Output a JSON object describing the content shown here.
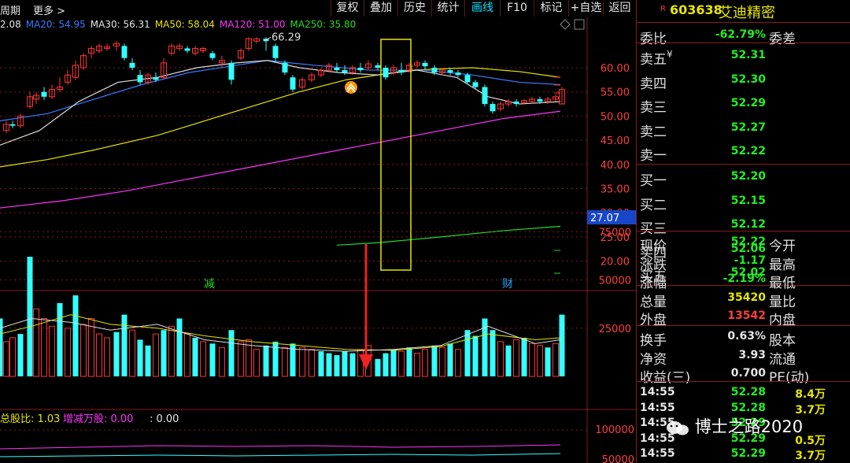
{
  "toolbar": {
    "period_label": "周期",
    "more_label": "更多 >",
    "buttons": [
      "复权",
      "叠加",
      "历史",
      "统计",
      "画线",
      "F10",
      "标记",
      "+自选",
      "返回"
    ],
    "active_button": "画线"
  },
  "ma_legend": [
    {
      "label": "2.08",
      "color": "#e6e6e6"
    },
    {
      "label": "MA20: 54.95",
      "color": "#3a7bff"
    },
    {
      "label": "MA30: 56.31",
      "color": "#e6e6e6"
    },
    {
      "label": "MA50: 58.04",
      "color": "#e6e600"
    },
    {
      "label": "MA120: 51.00",
      "color": "#ff33ff"
    },
    {
      "label": "MA250: 35.80",
      "color": "#22dd22"
    }
  ],
  "price_chart": {
    "high_marker": "66.29",
    "y_ticks": [
      "60.00",
      "55.00",
      "50.00",
      "45.00",
      "40.00",
      "35.00",
      "30.00",
      "25.00",
      "20.00"
    ],
    "current_tag": "27.07",
    "event_labels": [
      "减",
      "财"
    ]
  },
  "volume_chart": {
    "y_ticks": [
      "75000",
      "50000",
      "25000"
    ]
  },
  "bottom_indicator": {
    "labels": [
      {
        "text": "总股比: 1.03",
        "color": "#e6e600"
      },
      {
        "text": "增减万股: 0.00",
        "color": "#ff33ff"
      },
      {
        "text": ": 0.00",
        "color": "#e6e6e6"
      }
    ],
    "y_tick": "100000",
    "y_tick2": "50000"
  },
  "stock": {
    "badge": "R",
    "code": "603638",
    "name": "艾迪精密"
  },
  "weibi": {
    "label": "委比",
    "value": "-62.79%",
    "label2": "委差"
  },
  "order_book": {
    "sells": [
      {
        "label": "卖五",
        "mark": "¥",
        "price": "52.31"
      },
      {
        "label": "卖四",
        "price": "52.30"
      },
      {
        "label": "卖三",
        "price": "52.29"
      },
      {
        "label": "卖二",
        "price": "52.27"
      },
      {
        "label": "卖一",
        "price": "52.22"
      }
    ],
    "buys": [
      {
        "label": "买一",
        "price": "52.20"
      },
      {
        "label": "买二",
        "price": "52.15"
      },
      {
        "label": "买三",
        "price": "52.12"
      },
      {
        "label": "买四",
        "price": "52.06"
      },
      {
        "label": "买五",
        "price": "52.02"
      }
    ]
  },
  "quote": [
    {
      "label": "现价",
      "value": "52.22",
      "color": "#22ee22",
      "label2": "今开"
    },
    {
      "label": "涨跌",
      "value": "-1.17",
      "color": "#22ee22",
      "label2": "最高"
    },
    {
      "label": "涨幅",
      "value": "-2.19%",
      "color": "#22ee22",
      "label2": "最低"
    },
    {
      "label": "总量",
      "value": "35420",
      "color": "#e6e600",
      "label2": "量比"
    },
    {
      "label": "外盘",
      "value": "13542",
      "color": "#ff4040",
      "label2": "内盘"
    }
  ],
  "fundamentals": [
    {
      "label": "换手",
      "value": "0.63%",
      "label2": "股本"
    },
    {
      "label": "净资",
      "value": "3.93",
      "label2": "流通"
    },
    {
      "label": "收益(三)",
      "value": "0.700",
      "label2": "PE(动)"
    }
  ],
  "ticks": [
    {
      "time": "14:55",
      "price": "52.28",
      "vol": "8.4万",
      "volcolor": "#e6e600"
    },
    {
      "time": "14:55",
      "price": "52.28",
      "vol": "3.7万",
      "volcolor": "#e6e600"
    },
    {
      "time": "14:55",
      "price": "52.29",
      "vol": "",
      "volcolor": "#e6e600"
    },
    {
      "time": "14:55",
      "price": "52.29",
      "vol": "0.5万",
      "volcolor": "#e6e600"
    },
    {
      "time": "14:55",
      "price": "52.29",
      "vol": "3.7万",
      "volcolor": "#e6e600"
    }
  ],
  "watermark": "博士之路2020",
  "colors": {
    "up": "#ff3333",
    "down": "#33ffff",
    "grid": "#8b1a1a",
    "frame": "#e6e600"
  }
}
